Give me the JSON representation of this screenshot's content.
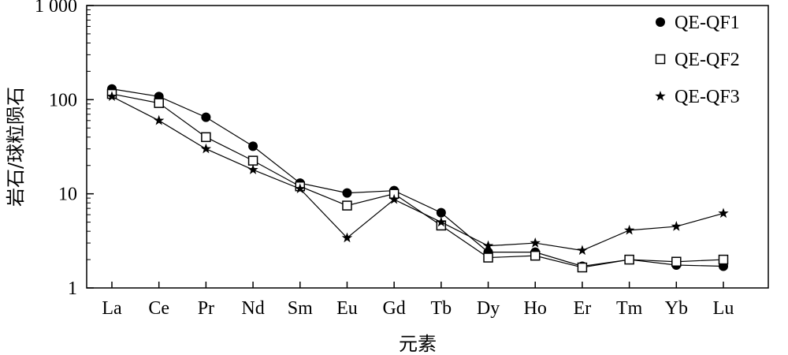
{
  "chart_data": {
    "type": "line",
    "xlabel": "元素",
    "ylabel": "岩石/球粒陨石",
    "yscale": "log",
    "ylim": [
      1,
      1000
    ],
    "yticks": [
      {
        "value": 1,
        "label": "1"
      },
      {
        "value": 10,
        "label": "10"
      },
      {
        "value": 100,
        "label": "100"
      },
      {
        "value": 1000,
        "label": "1 000"
      }
    ],
    "categories": [
      "La",
      "Ce",
      "Pr",
      "Nd",
      "Sm",
      "Eu",
      "Gd",
      "Tb",
      "Dy",
      "Ho",
      "Er",
      "Tm",
      "Yb",
      "Lu"
    ],
    "grid": false,
    "legend_position": "top-right",
    "series": [
      {
        "name": "QE-QF1",
        "marker": "filled-circle",
        "color": "#000000",
        "values": [
          130,
          108,
          65,
          32,
          13,
          10.2,
          10.8,
          6.3,
          2.4,
          2.4,
          1.7,
          2.0,
          1.75,
          1.7
        ]
      },
      {
        "name": "QE-QF2",
        "marker": "open-square",
        "color": "#000000",
        "values": [
          115,
          92,
          40,
          22.5,
          12,
          7.5,
          10,
          4.6,
          2.1,
          2.2,
          1.65,
          2.0,
          1.9,
          2.0
        ]
      },
      {
        "name": "QE-QF3",
        "marker": "filled-star",
        "color": "#000000",
        "values": [
          108,
          60,
          30,
          18,
          11.3,
          3.4,
          8.7,
          5.0,
          2.8,
          3.0,
          2.5,
          4.1,
          4.5,
          6.2
        ]
      }
    ]
  }
}
